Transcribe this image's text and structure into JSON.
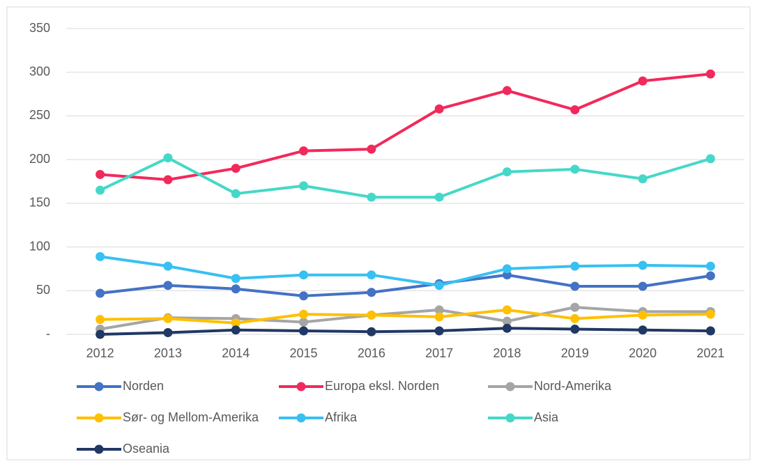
{
  "chart_data": {
    "type": "line",
    "categories": [
      "2012",
      "2013",
      "2014",
      "2015",
      "2016",
      "2017",
      "2018",
      "2019",
      "2020",
      "2021"
    ],
    "series": [
      {
        "name": "Norden",
        "color": "#4472c4",
        "values": [
          47,
          56,
          52,
          44,
          48,
          58,
          68,
          55,
          55,
          67
        ]
      },
      {
        "name": "Europa eksl. Norden",
        "color": "#f2295b",
        "values": [
          183,
          177,
          190,
          210,
          212,
          258,
          279,
          257,
          290,
          298
        ]
      },
      {
        "name": "Nord-Amerika",
        "color": "#a5a5a5",
        "values": [
          6,
          19,
          18,
          14,
          22,
          28,
          15,
          31,
          26,
          26
        ]
      },
      {
        "name": "Sør- og Mellom-Amerika",
        "color": "#ffc000",
        "values": [
          17,
          18,
          13,
          23,
          22,
          20,
          28,
          18,
          22,
          23
        ]
      },
      {
        "name": "Afrika",
        "color": "#38c0f2",
        "values": [
          89,
          78,
          64,
          68,
          68,
          56,
          75,
          78,
          79,
          78
        ]
      },
      {
        "name": "Asia",
        "color": "#45d8c8",
        "values": [
          165,
          202,
          161,
          170,
          157,
          157,
          186,
          189,
          178,
          201
        ]
      },
      {
        "name": "Oseania",
        "color": "#203864",
        "values": [
          0,
          2,
          5,
          4,
          3,
          4,
          7,
          6,
          5,
          4
        ]
      }
    ],
    "ylim": [
      0,
      350
    ],
    "yticks": [
      {
        "value": 0,
        "label": "-"
      },
      50,
      100,
      150,
      200,
      250,
      300,
      350
    ],
    "grid": true,
    "legend": "bottom"
  }
}
